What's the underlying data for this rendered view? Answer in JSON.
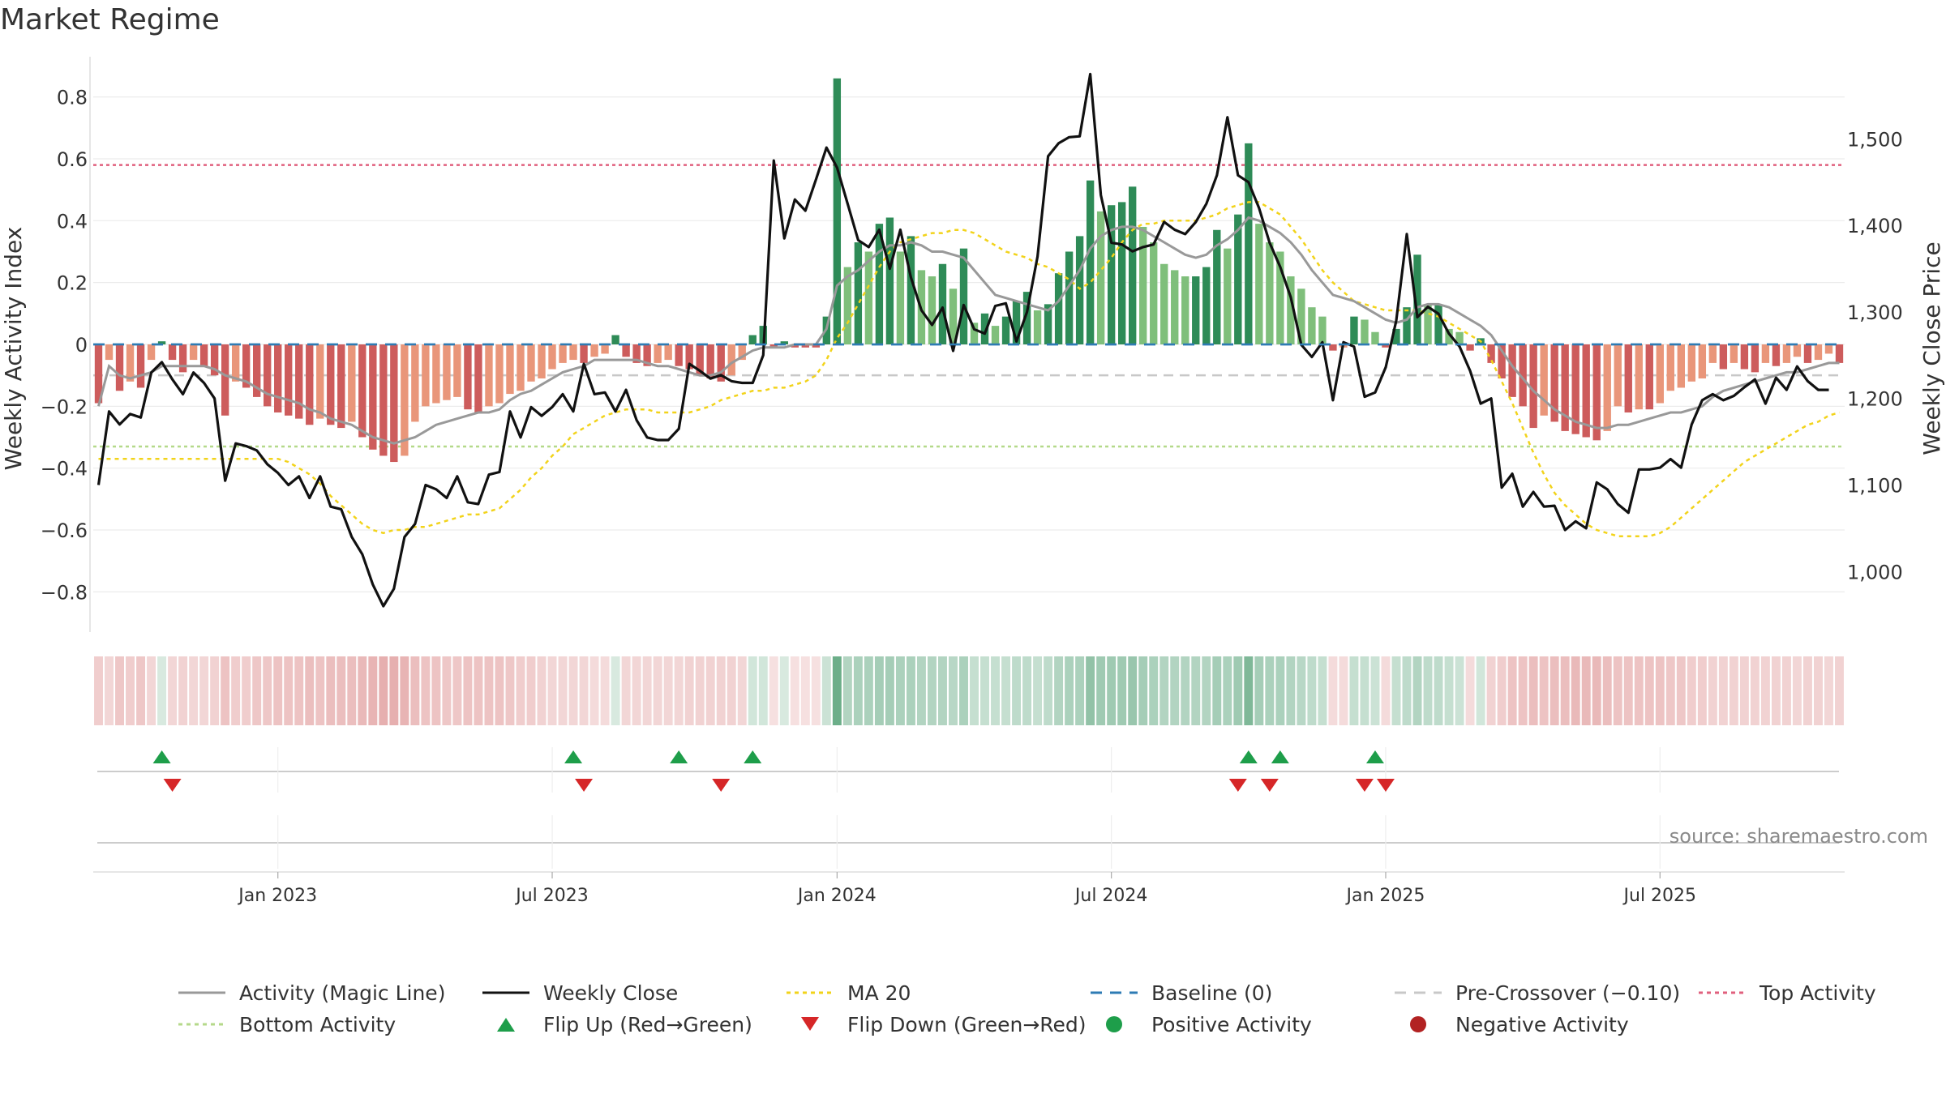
{
  "title": "Market Regime",
  "source": "source: sharemaestro.com",
  "colors": {
    "pos_dark": "#2e8b57",
    "pos_light": "#7fbf7b",
    "neg_dark": "#cd5c5c",
    "neg_light": "#e9967a",
    "close": "#111111",
    "magic": "#999999",
    "ma20": "#f2d31b",
    "baseline": "#2e7bb4",
    "precross": "#c8c8c8",
    "top": "#e0607e",
    "bottom": "#b5d98a",
    "flip_up": "#1e9e4a",
    "flip_down": "#d62728"
  },
  "chart_data": {
    "type": "bar",
    "y_left": {
      "label": "Weekly Activity Index",
      "lim": [
        -0.93,
        0.93
      ],
      "ticks": [
        0.8,
        0.6,
        0.4,
        0.2,
        0,
        -0.2,
        -0.4,
        -0.6,
        -0.8
      ],
      "tick_labels": [
        "0.8",
        "0.6",
        "0.4",
        "0.2",
        "0",
        "−0.2",
        "−0.4",
        "−0.6",
        "−0.8"
      ]
    },
    "y_right": {
      "label": "Weekly Close Price",
      "lim": [
        930,
        1595
      ],
      "ticks": [
        1500,
        1400,
        1300,
        1200,
        1100,
        1000
      ],
      "tick_labels": [
        "1,500",
        "1,400",
        "1,300",
        "1,200",
        "1,100",
        "1,000"
      ]
    },
    "x_axis": {
      "week_range": [
        "2022-09-05",
        "2025-09-01"
      ],
      "tick_weeks": [
        17,
        43,
        70,
        96,
        122,
        148
      ],
      "tick_labels": [
        "Jan 2023",
        "Jul 2023",
        "Jan 2024",
        "Jul 2024",
        "Jan 2025",
        "Jul 2025"
      ]
    },
    "activity": [
      -0.19,
      -0.05,
      -0.15,
      -0.12,
      -0.14,
      -0.05,
      0.01,
      -0.05,
      -0.09,
      -0.05,
      -0.07,
      -0.1,
      -0.23,
      -0.12,
      -0.14,
      -0.17,
      -0.2,
      -0.22,
      -0.23,
      -0.24,
      -0.26,
      -0.24,
      -0.26,
      -0.27,
      -0.25,
      -0.3,
      -0.34,
      -0.36,
      -0.38,
      -0.36,
      -0.25,
      -0.2,
      -0.19,
      -0.18,
      -0.17,
      -0.21,
      -0.22,
      -0.2,
      -0.19,
      -0.16,
      -0.15,
      -0.12,
      -0.11,
      -0.08,
      -0.06,
      -0.05,
      -0.06,
      -0.04,
      -0.03,
      0.03,
      -0.04,
      -0.06,
      -0.07,
      -0.06,
      -0.05,
      -0.07,
      -0.08,
      -0.1,
      -0.11,
      -0.12,
      -0.1,
      -0.05,
      0.03,
      0.06,
      -0.01,
      0.01,
      -0.01,
      -0.01,
      -0.01,
      0.09,
      0.86,
      0.25,
      0.33,
      0.3,
      0.39,
      0.41,
      0.3,
      0.35,
      0.24,
      0.22,
      0.26,
      0.18,
      0.31,
      0.07,
      0.1,
      0.06,
      0.09,
      0.14,
      0.17,
      0.11,
      0.13,
      0.23,
      0.3,
      0.35,
      0.53,
      0.43,
      0.45,
      0.46,
      0.51,
      0.38,
      0.33,
      0.26,
      0.24,
      0.22,
      0.22,
      0.25,
      0.37,
      0.31,
      0.42,
      0.65,
      0.39,
      0.33,
      0.3,
      0.22,
      0.18,
      0.12,
      0.09,
      -0.02,
      -0.01,
      0.09,
      0.08,
      0.04,
      -0.01,
      0.05,
      0.12,
      0.29,
      0.13,
      0.13,
      0.05,
      0.04,
      -0.02,
      0.02,
      -0.06,
      -0.11,
      -0.17,
      -0.2,
      -0.27,
      -0.23,
      -0.25,
      -0.28,
      -0.29,
      -0.3,
      -0.31,
      -0.28,
      -0.2,
      -0.22,
      -0.21,
      -0.21,
      -0.19,
      -0.15,
      -0.14,
      -0.12,
      -0.11,
      -0.06,
      -0.08,
      -0.06,
      -0.08,
      -0.09,
      -0.06,
      -0.07,
      -0.06,
      -0.04,
      -0.06,
      -0.05,
      -0.03,
      -0.06
    ],
    "close": [
      1100,
      1185,
      1170,
      1182,
      1178,
      1230,
      1242,
      1222,
      1205,
      1230,
      1218,
      1200,
      1105,
      1148,
      1145,
      1140,
      1124,
      1114,
      1100,
      1110,
      1085,
      1110,
      1075,
      1072,
      1040,
      1020,
      985,
      960,
      980,
      1040,
      1055,
      1100,
      1095,
      1085,
      1110,
      1080,
      1078,
      1112,
      1115,
      1185,
      1155,
      1190,
      1180,
      1190,
      1205,
      1185,
      1240,
      1205,
      1207,
      1185,
      1210,
      1175,
      1155,
      1152,
      1152,
      1165,
      1240,
      1232,
      1223,
      1227,
      1220,
      1218,
      1218,
      1250,
      1475,
      1385,
      1430,
      1417,
      1453,
      1490,
      1467,
      1425,
      1383,
      1375,
      1395,
      1350,
      1395,
      1340,
      1302,
      1285,
      1305,
      1255,
      1308,
      1280,
      1275,
      1307,
      1310,
      1266,
      1300,
      1364,
      1480,
      1495,
      1502,
      1503,
      1575,
      1435,
      1380,
      1378,
      1370,
      1375,
      1378,
      1404,
      1395,
      1390,
      1404,
      1425,
      1458,
      1525,
      1458,
      1450,
      1420,
      1380,
      1352,
      1317,
      1262,
      1248,
      1265,
      1198,
      1265,
      1260,
      1202,
      1207,
      1236,
      1290,
      1390,
      1294,
      1306,
      1298,
      1275,
      1260,
      1232,
      1194,
      1200,
      1097,
      1113,
      1075,
      1092,
      1075,
      1076,
      1048,
      1058,
      1050,
      1103,
      1095,
      1078,
      1068,
      1118,
      1118,
      1120,
      1130,
      1120,
      1170,
      1198,
      1205,
      1198,
      1203,
      1213,
      1222,
      1194,
      1224,
      1210,
      1237,
      1220,
      1210,
      1210
    ],
    "magic_line": [
      -0.2,
      -0.07,
      -0.1,
      -0.11,
      -0.1,
      -0.09,
      -0.07,
      -0.07,
      -0.07,
      -0.07,
      -0.07,
      -0.08,
      -0.1,
      -0.11,
      -0.12,
      -0.14,
      -0.16,
      -0.17,
      -0.18,
      -0.19,
      -0.21,
      -0.22,
      -0.24,
      -0.25,
      -0.26,
      -0.28,
      -0.3,
      -0.31,
      -0.32,
      -0.31,
      -0.3,
      -0.28,
      -0.26,
      -0.25,
      -0.24,
      -0.23,
      -0.22,
      -0.22,
      -0.21,
      -0.18,
      -0.16,
      -0.15,
      -0.13,
      -0.11,
      -0.09,
      -0.08,
      -0.07,
      -0.05,
      -0.05,
      -0.05,
      -0.05,
      -0.05,
      -0.06,
      -0.07,
      -0.07,
      -0.08,
      -0.09,
      -0.1,
      -0.1,
      -0.09,
      -0.06,
      -0.04,
      -0.02,
      -0.01,
      -0.01,
      -0.01,
      0.0,
      0.0,
      0.0,
      0.05,
      0.19,
      0.22,
      0.24,
      0.27,
      0.3,
      0.32,
      0.32,
      0.33,
      0.32,
      0.3,
      0.3,
      0.29,
      0.28,
      0.24,
      0.2,
      0.16,
      0.15,
      0.14,
      0.13,
      0.12,
      0.11,
      0.14,
      0.19,
      0.24,
      0.31,
      0.35,
      0.37,
      0.38,
      0.38,
      0.37,
      0.35,
      0.33,
      0.31,
      0.29,
      0.28,
      0.29,
      0.32,
      0.34,
      0.37,
      0.41,
      0.4,
      0.38,
      0.36,
      0.33,
      0.29,
      0.24,
      0.2,
      0.16,
      0.15,
      0.14,
      0.12,
      0.1,
      0.08,
      0.07,
      0.08,
      0.12,
      0.13,
      0.13,
      0.12,
      0.1,
      0.08,
      0.06,
      0.03,
      -0.02,
      -0.07,
      -0.11,
      -0.15,
      -0.18,
      -0.21,
      -0.23,
      -0.25,
      -0.26,
      -0.27,
      -0.27,
      -0.26,
      -0.26,
      -0.25,
      -0.24,
      -0.23,
      -0.22,
      -0.22,
      -0.21,
      -0.2,
      -0.17,
      -0.15,
      -0.14,
      -0.13,
      -0.12,
      -0.11,
      -0.1,
      -0.09,
      -0.09,
      -0.08,
      -0.07,
      -0.06,
      -0.06
    ],
    "ma20": [
      -0.37,
      -0.37,
      -0.37,
      -0.37,
      -0.37,
      -0.37,
      -0.37,
      -0.37,
      -0.37,
      -0.37,
      -0.37,
      -0.37,
      -0.37,
      -0.37,
      -0.37,
      -0.37,
      -0.37,
      -0.37,
      -0.38,
      -0.4,
      -0.42,
      -0.45,
      -0.49,
      -0.52,
      -0.55,
      -0.58,
      -0.6,
      -0.61,
      -0.6,
      -0.6,
      -0.59,
      -0.59,
      -0.58,
      -0.57,
      -0.56,
      -0.55,
      -0.55,
      -0.54,
      -0.53,
      -0.5,
      -0.47,
      -0.43,
      -0.4,
      -0.36,
      -0.33,
      -0.29,
      -0.27,
      -0.25,
      -0.23,
      -0.22,
      -0.21,
      -0.21,
      -0.21,
      -0.22,
      -0.22,
      -0.22,
      -0.22,
      -0.21,
      -0.2,
      -0.18,
      -0.17,
      -0.16,
      -0.15,
      -0.15,
      -0.14,
      -0.14,
      -0.13,
      -0.12,
      -0.1,
      -0.05,
      0.02,
      0.07,
      0.13,
      0.19,
      0.25,
      0.3,
      0.33,
      0.34,
      0.35,
      0.36,
      0.36,
      0.37,
      0.37,
      0.36,
      0.34,
      0.32,
      0.3,
      0.29,
      0.28,
      0.26,
      0.25,
      0.23,
      0.21,
      0.18,
      0.2,
      0.24,
      0.28,
      0.33,
      0.37,
      0.39,
      0.39,
      0.4,
      0.4,
      0.4,
      0.4,
      0.41,
      0.42,
      0.44,
      0.45,
      0.46,
      0.46,
      0.44,
      0.42,
      0.38,
      0.34,
      0.29,
      0.24,
      0.2,
      0.17,
      0.14,
      0.13,
      0.12,
      0.11,
      0.11,
      0.11,
      0.11,
      0.1,
      0.09,
      0.07,
      0.05,
      0.03,
      0.01,
      -0.05,
      -0.12,
      -0.19,
      -0.27,
      -0.35,
      -0.42,
      -0.48,
      -0.52,
      -0.55,
      -0.58,
      -0.6,
      -0.61,
      -0.62,
      -0.62,
      -0.62,
      -0.62,
      -0.61,
      -0.59,
      -0.56,
      -0.53,
      -0.5,
      -0.47,
      -0.44,
      -0.41,
      -0.38,
      -0.36,
      -0.34,
      -0.32,
      -0.3,
      -0.28,
      -0.26,
      -0.25,
      -0.23,
      -0.22
    ],
    "strip_intensity": [
      0.35,
      0.25,
      0.4,
      0.35,
      0.4,
      0.25,
      0.15,
      0.25,
      0.3,
      0.25,
      0.25,
      0.3,
      0.45,
      0.35,
      0.35,
      0.4,
      0.4,
      0.45,
      0.45,
      0.45,
      0.5,
      0.45,
      0.5,
      0.5,
      0.5,
      0.55,
      0.6,
      0.65,
      0.65,
      0.6,
      0.5,
      0.45,
      0.45,
      0.4,
      0.4,
      0.45,
      0.45,
      0.45,
      0.45,
      0.4,
      0.35,
      0.35,
      0.3,
      0.25,
      0.25,
      0.25,
      0.25,
      0.2,
      0.2,
      0.15,
      0.25,
      0.25,
      0.25,
      0.25,
      0.25,
      0.25,
      0.3,
      0.3,
      0.3,
      0.3,
      0.3,
      0.25,
      0.2,
      0.2,
      0.15,
      0.15,
      0.15,
      0.15,
      0.15,
      0.25,
      1.0,
      0.45,
      0.5,
      0.5,
      0.55,
      0.55,
      0.5,
      0.5,
      0.45,
      0.45,
      0.45,
      0.4,
      0.5,
      0.3,
      0.3,
      0.3,
      0.3,
      0.35,
      0.35,
      0.3,
      0.35,
      0.45,
      0.5,
      0.5,
      0.7,
      0.6,
      0.6,
      0.6,
      0.65,
      0.55,
      0.5,
      0.45,
      0.45,
      0.45,
      0.45,
      0.45,
      0.55,
      0.5,
      0.6,
      0.85,
      0.55,
      0.5,
      0.5,
      0.45,
      0.4,
      0.35,
      0.3,
      0.2,
      0.2,
      0.3,
      0.3,
      0.25,
      0.2,
      0.3,
      0.35,
      0.45,
      0.35,
      0.35,
      0.3,
      0.25,
      0.2,
      0.2,
      0.3,
      0.35,
      0.45,
      0.45,
      0.5,
      0.45,
      0.5,
      0.5,
      0.55,
      0.55,
      0.55,
      0.5,
      0.45,
      0.45,
      0.45,
      0.45,
      0.45,
      0.4,
      0.4,
      0.35,
      0.35,
      0.3,
      0.3,
      0.3,
      0.3,
      0.3,
      0.3,
      0.3,
      0.3,
      0.25,
      0.3,
      0.3,
      0.25,
      0.3
    ],
    "top_activity": 0.58,
    "bottom_activity": -0.33,
    "pre_crossover": -0.1,
    "baseline": 0,
    "flip_up_weeks": [
      6,
      45,
      55,
      62,
      109,
      112,
      121
    ],
    "flip_down_weeks": [
      7,
      46,
      59,
      108,
      111,
      120,
      122
    ],
    "legend": [
      {
        "label": "Activity (Magic Line)",
        "marker": "line",
        "color": "#999999"
      },
      {
        "label": "Weekly Close",
        "marker": "line",
        "color": "#111111"
      },
      {
        "label": "MA 20",
        "marker": "dotted",
        "color": "#f2d31b"
      },
      {
        "label": "Baseline (0)",
        "marker": "dashed",
        "color": "#2e7bb4"
      },
      {
        "label": "Pre-Crossover (−0.10)",
        "marker": "dashed",
        "color": "#c8c8c8"
      },
      {
        "label": "Top Activity",
        "marker": "dotted",
        "color": "#e0607e"
      },
      {
        "label": "Bottom Activity",
        "marker": "dotted",
        "color": "#b5d98a"
      },
      {
        "label": "Flip Up (Red→Green)",
        "marker": "triangle-up",
        "color": "#1e9e4a"
      },
      {
        "label": "Flip Down (Green→Red)",
        "marker": "triangle-down",
        "color": "#d62728"
      },
      {
        "label": "Positive Activity",
        "marker": "circle",
        "color": "#1e9e4a"
      },
      {
        "label": "Negative Activity",
        "marker": "circle",
        "color": "#b22222"
      }
    ]
  }
}
